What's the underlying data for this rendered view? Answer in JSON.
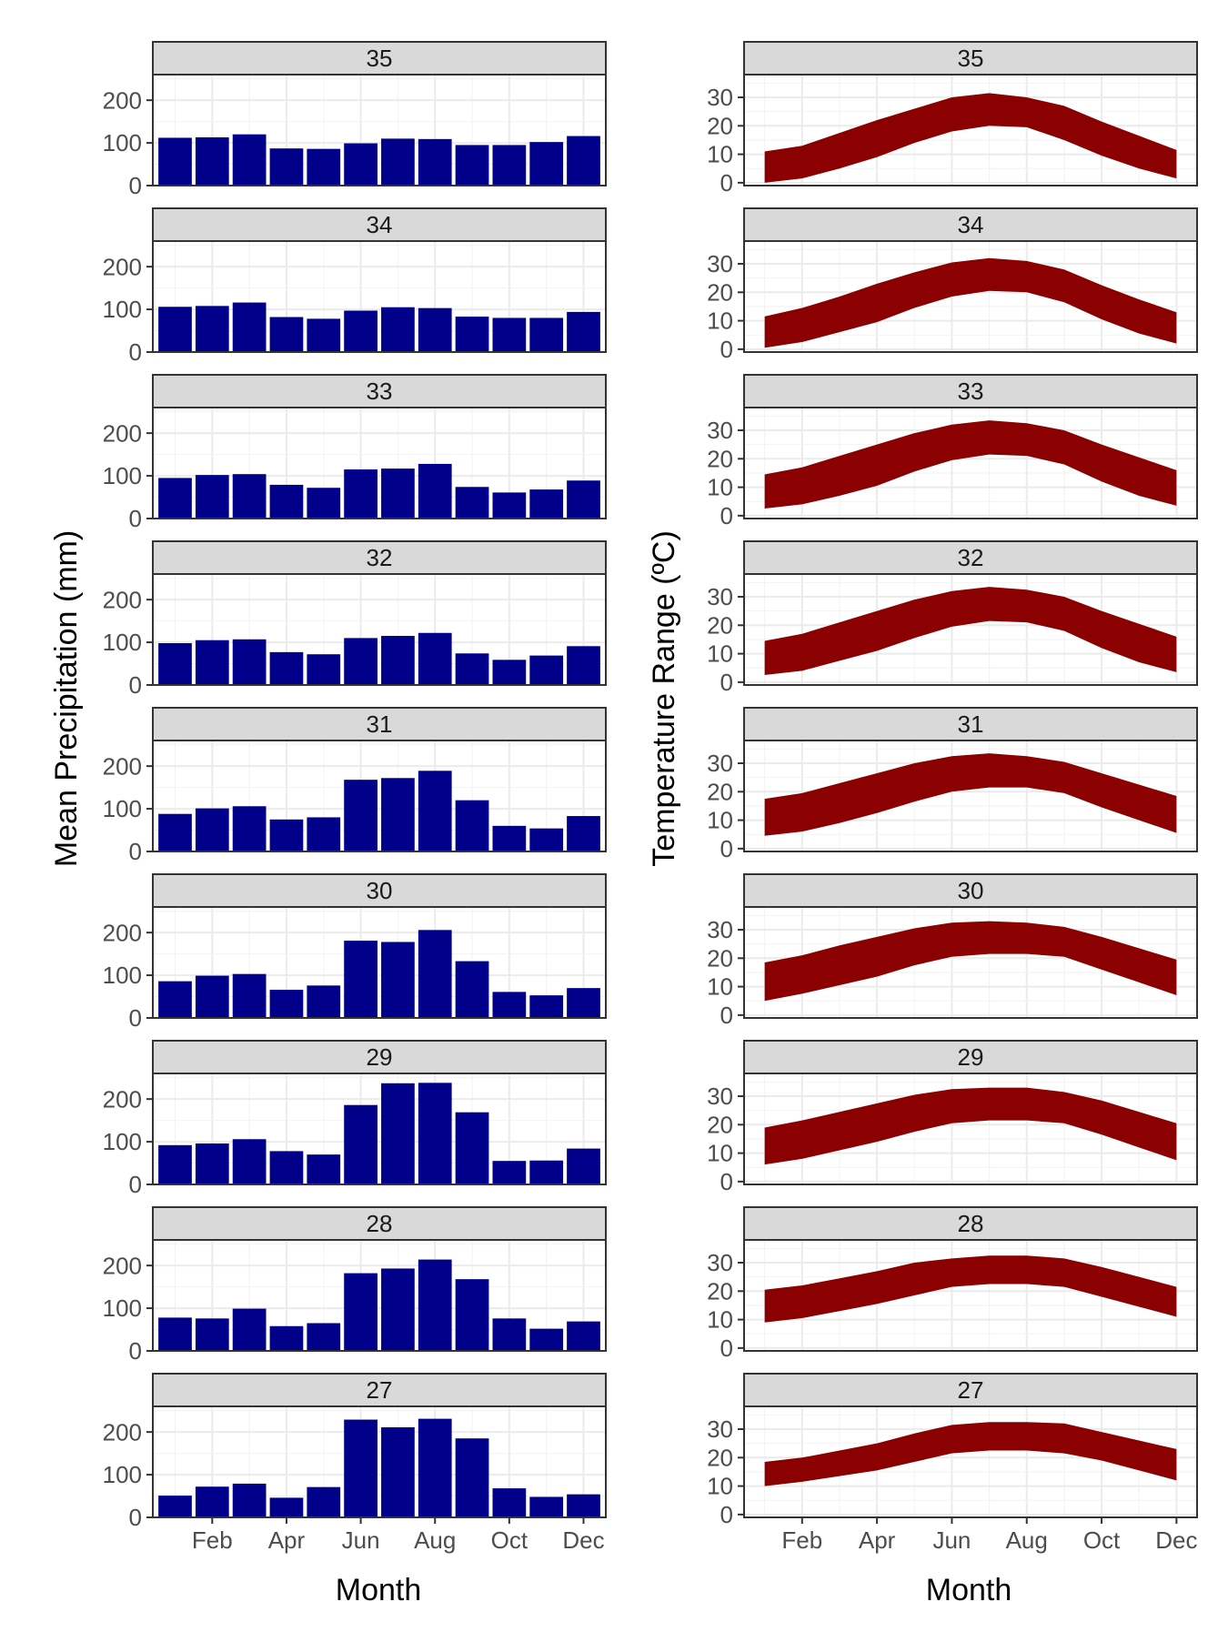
{
  "chart_data": [
    {
      "type": "bar",
      "xlabel": "Month",
      "ylabel": "Mean Precipitation (mm)",
      "ylim": [
        0,
        260
      ],
      "y_ticks": [
        0,
        100,
        200
      ],
      "x_tick_labels": [
        "Feb",
        "Apr",
        "Jun",
        "Aug",
        "Oct",
        "Dec"
      ],
      "x_tick_months": [
        2,
        4,
        6,
        8,
        10,
        12
      ],
      "x_range": [
        0.4,
        12.6
      ],
      "bar_color": "#00008B",
      "facets": [
        {
          "label": "35",
          "values": [
            112,
            113,
            120,
            87,
            86,
            99,
            110,
            109,
            95,
            95,
            102,
            116
          ]
        },
        {
          "label": "34",
          "values": [
            106,
            108,
            116,
            82,
            78,
            97,
            105,
            103,
            83,
            80,
            80,
            94
          ]
        },
        {
          "label": "33",
          "values": [
            95,
            102,
            104,
            79,
            72,
            115,
            117,
            128,
            74,
            61,
            68,
            89
          ]
        },
        {
          "label": "32",
          "values": [
            98,
            105,
            107,
            77,
            72,
            110,
            115,
            122,
            74,
            59,
            69,
            91
          ]
        },
        {
          "label": "31",
          "values": [
            88,
            101,
            106,
            75,
            80,
            168,
            172,
            189,
            120,
            60,
            54,
            83
          ]
        },
        {
          "label": "30",
          "values": [
            86,
            99,
            103,
            66,
            76,
            181,
            178,
            206,
            133,
            61,
            53,
            70
          ]
        },
        {
          "label": "29",
          "values": [
            92,
            96,
            106,
            78,
            70,
            186,
            237,
            238,
            169,
            55,
            56,
            84
          ]
        },
        {
          "label": "28",
          "values": [
            78,
            76,
            99,
            58,
            65,
            182,
            193,
            214,
            168,
            76,
            52,
            69
          ]
        },
        {
          "label": "27",
          "values": [
            51,
            72,
            79,
            46,
            71,
            229,
            211,
            231,
            185,
            68,
            48,
            54
          ]
        }
      ]
    },
    {
      "type": "area",
      "xlabel": "Month",
      "ylabel": "Temperature Range (ºC)",
      "ylim": [
        -1,
        38
      ],
      "y_ticks": [
        0,
        10,
        20,
        30
      ],
      "x_tick_labels": [
        "Feb",
        "Apr",
        "Jun",
        "Aug",
        "Oct",
        "Dec"
      ],
      "x_tick_months": [
        2,
        4,
        6,
        8,
        10,
        12
      ],
      "x_range": [
        0.45,
        12.55
      ],
      "fill_color": "#8B0000",
      "facets": [
        {
          "label": "35",
          "low": [
            0,
            1.5,
            5,
            9,
            14,
            18,
            20,
            19.5,
            15,
            9.5,
            5,
            1.5
          ],
          "high": [
            11,
            13,
            17.5,
            22,
            26,
            30,
            31.5,
            30,
            27,
            21.5,
            16.5,
            11.5
          ]
        },
        {
          "label": "34",
          "low": [
            0.5,
            2.5,
            6,
            9.5,
            14.5,
            18.5,
            20.5,
            20,
            16.5,
            10.5,
            5.5,
            2
          ],
          "high": [
            11.5,
            14.5,
            18.5,
            23,
            27,
            30.5,
            32,
            31,
            28,
            22.5,
            17.5,
            13
          ]
        },
        {
          "label": "33",
          "low": [
            2.5,
            4,
            7,
            10.5,
            15.5,
            19.5,
            21.5,
            21,
            18,
            12,
            7,
            3.5
          ],
          "high": [
            14.5,
            17,
            21,
            25,
            29,
            32,
            33.5,
            32.5,
            30,
            25,
            20.5,
            16
          ]
        },
        {
          "label": "32",
          "low": [
            2.5,
            4,
            7.5,
            11,
            15.5,
            19.5,
            21.5,
            21,
            18,
            12,
            7,
            3.5
          ],
          "high": [
            14.5,
            17,
            21,
            25,
            29,
            32,
            33.5,
            32.5,
            30,
            25,
            20.5,
            16
          ]
        },
        {
          "label": "31",
          "low": [
            4.5,
            6,
            9,
            12.5,
            16.5,
            20,
            21.5,
            21.5,
            19.5,
            14.5,
            10,
            5.5
          ],
          "high": [
            17.5,
            19.5,
            23,
            26.5,
            30,
            32.5,
            33.5,
            32.5,
            30.5,
            26.5,
            22.5,
            18.5
          ]
        },
        {
          "label": "30",
          "low": [
            5,
            7.5,
            10.5,
            13.5,
            17.5,
            20.5,
            21.5,
            21.5,
            20.5,
            16,
            11.5,
            7
          ],
          "high": [
            18.5,
            21,
            24.5,
            27.5,
            30.5,
            32.5,
            33,
            32.5,
            31,
            27.5,
            23.5,
            19.5
          ]
        },
        {
          "label": "29",
          "low": [
            6,
            8,
            11,
            14,
            17.5,
            20.5,
            21.5,
            21.5,
            20.5,
            16.5,
            12,
            7.5
          ],
          "high": [
            19,
            21.5,
            24.5,
            27.5,
            30.5,
            32.5,
            33,
            33,
            31.5,
            28.5,
            24.5,
            20.5
          ]
        },
        {
          "label": "28",
          "low": [
            9,
            10.5,
            13,
            15.5,
            18.5,
            21.5,
            22.5,
            22.5,
            21.5,
            18,
            14.5,
            11
          ],
          "high": [
            20.5,
            22,
            24.5,
            27,
            30,
            31.5,
            32.5,
            32.5,
            31.5,
            28.5,
            25,
            21.5
          ]
        },
        {
          "label": "27",
          "low": [
            10,
            11.5,
            13.5,
            15.5,
            18.5,
            21.5,
            22.5,
            22.5,
            21.5,
            19,
            15.5,
            12
          ],
          "high": [
            18.5,
            20,
            22.5,
            25,
            28.5,
            31.5,
            32.5,
            32.5,
            32,
            29,
            26,
            23
          ]
        }
      ]
    }
  ]
}
